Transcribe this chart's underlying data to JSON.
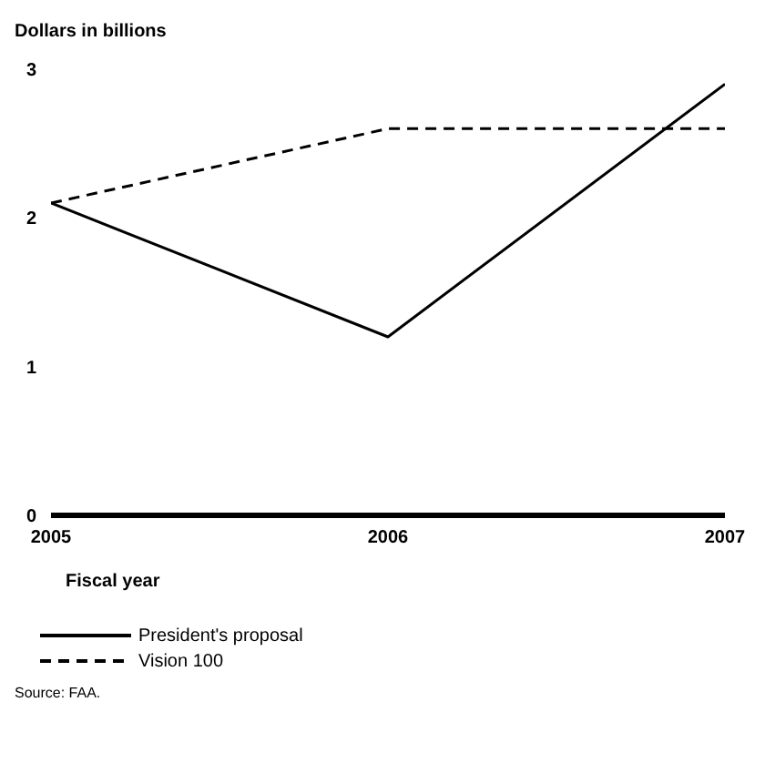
{
  "chart_data": {
    "type": "line",
    "ylabel": "Dollars in billions",
    "xlabel": "Fiscal year",
    "x": [
      2005,
      2006,
      2007
    ],
    "xlim": [
      2005,
      2007
    ],
    "xticks": [
      2005,
      2006,
      2007
    ],
    "ylim": [
      0,
      3
    ],
    "yticks": [
      0,
      1,
      2,
      3
    ],
    "grid": false,
    "legend": "bottom left",
    "marker": "none",
    "series": [
      {
        "name": "President's proposal",
        "color": "#000000",
        "values": [
          2.1,
          1.2,
          2.9
        ],
        "line_style": "solid"
      },
      {
        "name": "Vision 100",
        "color": "#000000",
        "values": [
          2.1,
          2.6,
          2.6
        ],
        "line_style": "dashed"
      }
    ],
    "annotations": [
      "Source: FAA."
    ]
  }
}
